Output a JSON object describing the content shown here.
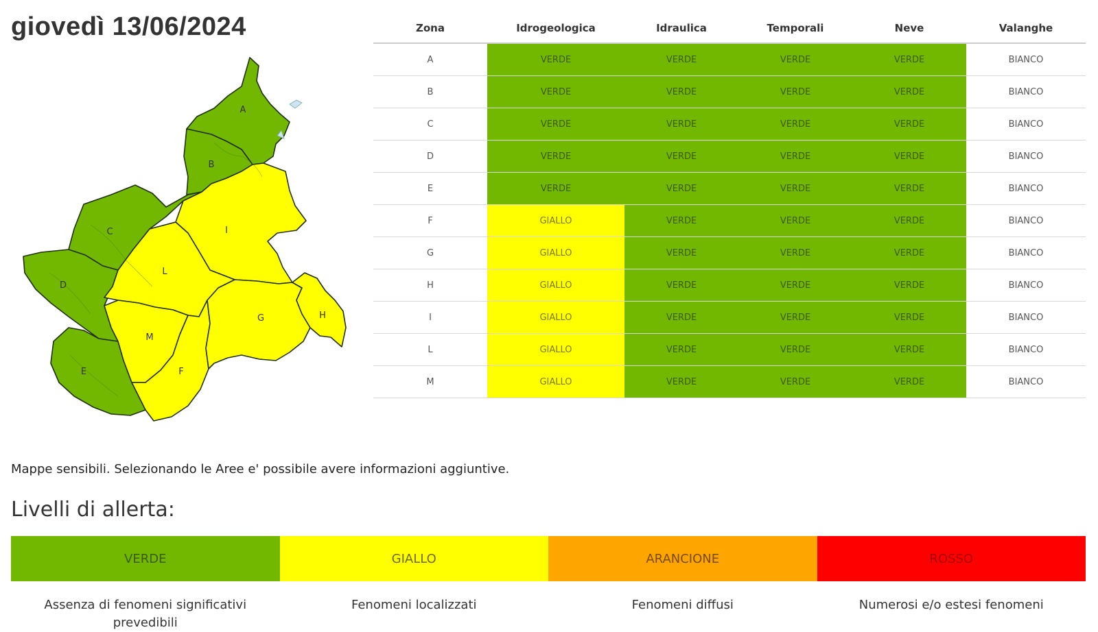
{
  "date_title": "giovedì 13/06/2024",
  "table": {
    "headers": [
      "Zona",
      "Idrogeologica",
      "Idraulica",
      "Temporali",
      "Neve",
      "Valanghe"
    ],
    "rows": [
      {
        "zona": "A",
        "idrogeologica": "VERDE",
        "idraulica": "VERDE",
        "temporali": "VERDE",
        "neve": "VERDE",
        "valanghe": "BIANCO"
      },
      {
        "zona": "B",
        "idrogeologica": "VERDE",
        "idraulica": "VERDE",
        "temporali": "VERDE",
        "neve": "VERDE",
        "valanghe": "BIANCO"
      },
      {
        "zona": "C",
        "idrogeologica": "VERDE",
        "idraulica": "VERDE",
        "temporali": "VERDE",
        "neve": "VERDE",
        "valanghe": "BIANCO"
      },
      {
        "zona": "D",
        "idrogeologica": "VERDE",
        "idraulica": "VERDE",
        "temporali": "VERDE",
        "neve": "VERDE",
        "valanghe": "BIANCO"
      },
      {
        "zona": "E",
        "idrogeologica": "VERDE",
        "idraulica": "VERDE",
        "temporali": "VERDE",
        "neve": "VERDE",
        "valanghe": "BIANCO"
      },
      {
        "zona": "F",
        "idrogeologica": "GIALLO",
        "idraulica": "VERDE",
        "temporali": "VERDE",
        "neve": "VERDE",
        "valanghe": "BIANCO"
      },
      {
        "zona": "G",
        "idrogeologica": "GIALLO",
        "idraulica": "VERDE",
        "temporali": "VERDE",
        "neve": "VERDE",
        "valanghe": "BIANCO"
      },
      {
        "zona": "H",
        "idrogeologica": "GIALLO",
        "idraulica": "VERDE",
        "temporali": "VERDE",
        "neve": "VERDE",
        "valanghe": "BIANCO"
      },
      {
        "zona": "I",
        "idrogeologica": "GIALLO",
        "idraulica": "VERDE",
        "temporali": "VERDE",
        "neve": "VERDE",
        "valanghe": "BIANCO"
      },
      {
        "zona": "L",
        "idrogeologica": "GIALLO",
        "idraulica": "VERDE",
        "temporali": "VERDE",
        "neve": "VERDE",
        "valanghe": "BIANCO"
      },
      {
        "zona": "M",
        "idrogeologica": "GIALLO",
        "idraulica": "VERDE",
        "temporali": "VERDE",
        "neve": "VERDE",
        "valanghe": "BIANCO"
      }
    ]
  },
  "map": {
    "zone_labels": {
      "A": "A",
      "B": "B",
      "C": "C",
      "D": "D",
      "E": "E",
      "F": "F",
      "G": "G",
      "H": "H",
      "I": "I",
      "L": "L",
      "M": "M"
    },
    "zone_levels": {
      "A": "VERDE",
      "B": "VERDE",
      "C": "VERDE",
      "D": "VERDE",
      "E": "VERDE",
      "F": "GIALLO",
      "G": "GIALLO",
      "H": "GIALLO",
      "I": "GIALLO",
      "L": "GIALLO",
      "M": "GIALLO"
    }
  },
  "note": "Mappe sensibili. Selezionando le Aree e' possibile avere informazioni aggiuntive.",
  "legend": {
    "title": "Livelli di allerta:",
    "levels": [
      {
        "label": "VERDE",
        "color": "#72b800",
        "text_color": "#3c5a00",
        "description": "Assenza di fenomeni significativi prevedibili"
      },
      {
        "label": "GIALLO",
        "color": "#ffff00",
        "text_color": "#6b6b00",
        "description": "Fenomeni localizzati"
      },
      {
        "label": "ARANCIONE",
        "color": "#ffa500",
        "text_color": "#7a4a00",
        "description": "Fenomeni diffusi"
      },
      {
        "label": "ROSSO",
        "color": "#ff0000",
        "text_color": "#a80000",
        "description": "Numerosi e/o estesi fenomeni"
      }
    ]
  },
  "level_colors": {
    "VERDE": "#72b800",
    "GIALLO": "#ffff00",
    "BIANCO": "#ffffff"
  }
}
